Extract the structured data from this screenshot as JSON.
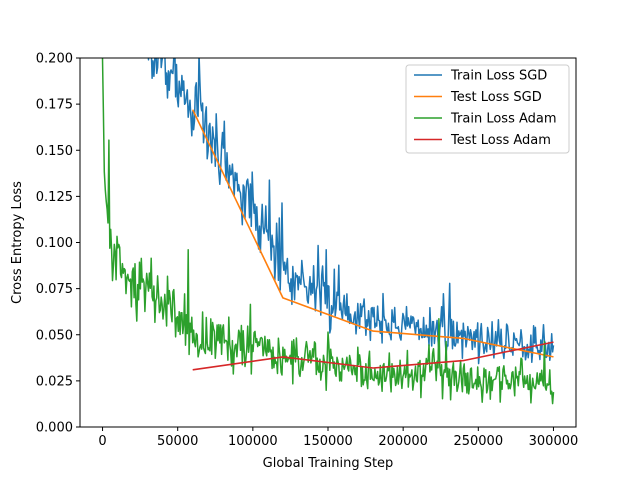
{
  "chart_data": {
    "type": "line",
    "title": "",
    "xlabel": "Global Training Step",
    "ylabel": "Cross Entropy Loss",
    "xlim": [
      -15000,
      315000
    ],
    "ylim": [
      0.0,
      0.2
    ],
    "xticks": [
      0,
      50000,
      100000,
      150000,
      200000,
      250000,
      300000
    ],
    "xtick_labels": [
      "0",
      "50000",
      "100000",
      "150000",
      "200000",
      "250000",
      "300000"
    ],
    "yticks": [
      0.0,
      0.025,
      0.05,
      0.075,
      0.1,
      0.125,
      0.15,
      0.175,
      0.2
    ],
    "ytick_labels": [
      "0.000",
      "0.025",
      "0.050",
      "0.075",
      "0.100",
      "0.125",
      "0.150",
      "0.175",
      "0.200"
    ],
    "grid": false,
    "legend_position": "top-right",
    "series": [
      {
        "name": "Train Loss SGD",
        "color": "#1f77b4",
        "style": "noisy",
        "seed": 7,
        "x_range": [
          30000,
          300000
        ],
        "step": 600,
        "trend_x": [
          30000,
          50000,
          70000,
          100000,
          120000,
          150000,
          180000,
          220000,
          260000,
          300000
        ],
        "trend_y": [
          0.205,
          0.185,
          0.16,
          0.118,
          0.088,
          0.068,
          0.058,
          0.052,
          0.047,
          0.044
        ],
        "noise": [
          0.035,
          0.032,
          0.03,
          0.028,
          0.024,
          0.02,
          0.018,
          0.017,
          0.016,
          0.016
        ]
      },
      {
        "name": "Test Loss SGD",
        "color": "#ff7f0e",
        "style": "line",
        "x": [
          60000,
          120000,
          180000,
          240000,
          300000
        ],
        "y": [
          0.172,
          0.07,
          0.052,
          0.048,
          0.038
        ]
      },
      {
        "name": "Train Loss Adam",
        "color": "#2ca02c",
        "style": "noisy",
        "seed": 13,
        "x_range": [
          0,
          300000
        ],
        "step": 600,
        "trend_x": [
          0,
          1500,
          6000,
          20000,
          40000,
          60000,
          90000,
          120000,
          160000,
          200000,
          250000,
          300000
        ],
        "trend_y": [
          0.2,
          0.13,
          0.095,
          0.078,
          0.068,
          0.05,
          0.045,
          0.037,
          0.032,
          0.028,
          0.026,
          0.022
        ],
        "noise": [
          0.0,
          0.03,
          0.022,
          0.024,
          0.024,
          0.022,
          0.02,
          0.018,
          0.017,
          0.016,
          0.015,
          0.015
        ]
      },
      {
        "name": "Test Loss Adam",
        "color": "#d62728",
        "style": "line",
        "x": [
          60000,
          120000,
          180000,
          240000,
          300000
        ],
        "y": [
          0.031,
          0.038,
          0.032,
          0.036,
          0.046
        ]
      }
    ]
  }
}
